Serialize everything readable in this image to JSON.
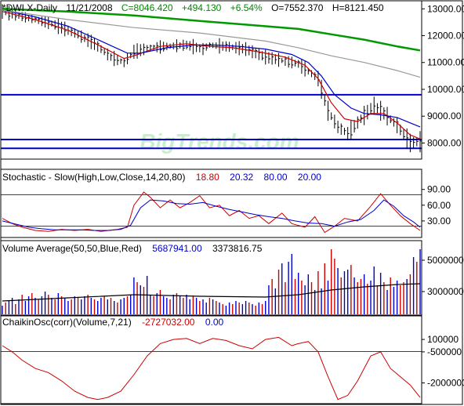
{
  "colors": {
    "price_bar": "#000000",
    "ma_fast": "#cc0000",
    "ma_mid": "#0000cc",
    "ma_long": "#999999",
    "ma_200": "#009900",
    "support_line": "#0000cc",
    "watermark": "#c8f0c8",
    "header_green": "#008800",
    "header_red": "#cc0000",
    "header_blue": "#0000cc",
    "vol_up": "#0000cc",
    "vol_down": "#cc0000"
  },
  "watermark": "BigTrends.com",
  "chart_data": [
    {
      "type": "line",
      "name": "price-panel",
      "header": {
        "symbol": "*DWI X-Daily",
        "date": "11/21/2008",
        "close": "C=8046.420",
        "change": "+494.130",
        "change_pct": "+6.54%",
        "open": "O=7552.370",
        "high": "H=8121.450"
      },
      "ylim": [
        7400,
        13300
      ],
      "y_ticks": [
        8000,
        9000,
        10000,
        11000,
        12000,
        13000
      ],
      "y_tick_labels": [
        "8000.00",
        "9000.00",
        "10000.00",
        "11000.00",
        "12000.00",
        "13000.00"
      ],
      "grid": false,
      "horizontal_lines": [
        9800,
        8130,
        7800
      ],
      "x_index": "trading days, 0-127",
      "price_path": {
        "x": [
          0,
          8,
          15,
          22,
          28,
          33,
          37,
          40,
          45,
          50,
          56,
          61,
          63,
          68,
          74,
          80,
          86,
          90,
          96,
          99,
          102,
          105,
          109,
          113,
          117,
          120,
          124,
          127
        ],
        "y": [
          12900,
          12650,
          12450,
          12100,
          11700,
          11200,
          11000,
          11400,
          11550,
          11600,
          11650,
          11500,
          11650,
          11600,
          11500,
          11200,
          11050,
          10950,
          10400,
          9200,
          8600,
          8350,
          8900,
          9400,
          9000,
          8650,
          8000,
          8050
        ]
      },
      "series": [
        {
          "key": "ma_fast",
          "x": [
            0,
            10,
            20,
            30,
            37,
            40,
            48,
            56,
            63,
            70,
            78,
            86,
            92,
            96,
            100,
            104,
            108,
            112,
            116,
            120,
            124,
            127
          ],
          "y": [
            12900,
            12600,
            12200,
            11600,
            11150,
            11250,
            11600,
            11700,
            11600,
            11550,
            11400,
            11200,
            10900,
            10400,
            9500,
            8900,
            8800,
            9100,
            9100,
            8750,
            8300,
            8150
          ]
        },
        {
          "key": "ma_mid",
          "x": [
            0,
            10,
            20,
            30,
            38,
            42,
            50,
            58,
            65,
            72,
            80,
            88,
            93,
            97,
            101,
            106,
            110,
            115,
            120,
            124,
            127
          ],
          "y": [
            12950,
            12700,
            12350,
            11800,
            11350,
            11350,
            11550,
            11650,
            11650,
            11600,
            11500,
            11300,
            11000,
            10500,
            9800,
            9300,
            9100,
            9050,
            8950,
            8750,
            8600
          ]
        },
        {
          "key": "ma_long",
          "x": [
            0,
            20,
            40,
            60,
            80,
            90,
            100,
            110,
            120,
            127
          ],
          "y": [
            12950,
            12600,
            12300,
            12100,
            11800,
            11550,
            11250,
            11000,
            10700,
            10450
          ]
        },
        {
          "key": "ma_200",
          "x": [
            0,
            20,
            40,
            60,
            75,
            90,
            100,
            110,
            120,
            127
          ],
          "y": [
            13000,
            12900,
            12750,
            12550,
            12400,
            12250,
            12050,
            11850,
            11600,
            11450
          ]
        }
      ]
    },
    {
      "type": "line",
      "name": "stochastic-panel",
      "header": {
        "label": "Stochastic - Slow(High,Low,Close,14,20,80)",
        "k_value": "18.80",
        "d_value": "20.32",
        "upper": "80.00",
        "lower": "20.00"
      },
      "ylim": [
        0,
        100
      ],
      "y_ticks": [
        30,
        60,
        90
      ],
      "y_tick_labels": [
        "30.00",
        "60.00",
        "90.00"
      ],
      "horizontal_lines": [
        80,
        20
      ],
      "series": [
        {
          "key": "ma_fast",
          "x": [
            0,
            3,
            6,
            10,
            14,
            18,
            22,
            26,
            30,
            35,
            38,
            40,
            43,
            45,
            48,
            51,
            54,
            57,
            60,
            63,
            66,
            69,
            72,
            75,
            78,
            81,
            85,
            88,
            92,
            95,
            98,
            101,
            104,
            108,
            112,
            115,
            118,
            121,
            124,
            127
          ],
          "y": [
            35,
            25,
            18,
            12,
            10,
            14,
            12,
            14,
            10,
            14,
            18,
            60,
            85,
            75,
            55,
            70,
            55,
            65,
            78,
            55,
            60,
            40,
            50,
            35,
            40,
            25,
            45,
            25,
            18,
            38,
            8,
            20,
            35,
            30,
            58,
            82,
            60,
            40,
            25,
            12
          ]
        },
        {
          "key": "ma_mid",
          "x": [
            0,
            4,
            8,
            12,
            16,
            20,
            24,
            28,
            32,
            36,
            39,
            42,
            45,
            49,
            53,
            57,
            61,
            65,
            69,
            73,
            77,
            81,
            85,
            89,
            93,
            97,
            101,
            105,
            109,
            113,
            116,
            119,
            122,
            125,
            127
          ],
          "y": [
            30,
            24,
            18,
            15,
            13,
            13,
            13,
            12,
            12,
            14,
            22,
            55,
            70,
            68,
            63,
            62,
            65,
            58,
            52,
            47,
            42,
            38,
            35,
            30,
            26,
            25,
            20,
            28,
            33,
            50,
            70,
            58,
            40,
            28,
            18
          ]
        }
      ]
    },
    {
      "type": "bar",
      "name": "volume-panel",
      "header": {
        "label": "Volume Average(50,50,Blue,Red)",
        "value_1": "5687941.00",
        "value_2": "3373816.75"
      },
      "ylim": [
        1500000,
        6200000
      ],
      "y_ticks": [
        3000000,
        5000000
      ],
      "y_tick_labels": [
        "3000000",
        "5000000"
      ],
      "values": [
        2100000,
        2300000,
        2400000,
        2600000,
        2200000,
        2500000,
        2800000,
        2400000,
        2700000,
        2900000,
        2600000,
        2500000,
        2700000,
        3000000,
        2800000,
        2600000,
        2500000,
        2900000,
        2700000,
        2600000,
        2400000,
        2500000,
        2700000,
        2600000,
        2500000,
        2700000,
        2800000,
        2600000,
        2500000,
        2400000,
        2600000,
        2700000,
        2500000,
        2600000,
        2400000,
        2300000,
        2500000,
        2600000,
        2700000,
        2800000,
        3900000,
        3600000,
        3400000,
        3300000,
        4000000,
        2800000,
        2700000,
        2900000,
        3100000,
        2700000,
        2600000,
        2500000,
        2800000,
        2900000,
        2700000,
        2600000,
        2800000,
        2500000,
        2700000,
        2600000,
        2400000,
        2500000,
        2300000,
        2600000,
        2500000,
        2400000,
        2300000,
        2200000,
        2100000,
        2300000,
        2200000,
        2400000,
        2300000,
        2200000,
        2400000,
        2300000,
        2200000,
        2100000,
        2300000,
        2200000,
        2400000,
        3400000,
        3800000,
        3200000,
        4400000,
        4800000,
        3600000,
        4900000,
        5400000,
        3800000,
        4200000,
        3700000,
        3400000,
        4100000,
        3600000,
        3100000,
        4300000,
        3200000,
        4800000,
        3700000,
        5700000,
        5100000,
        4500000,
        3900000,
        4300000,
        4400000,
        4700000,
        3900000,
        3600000,
        3800000,
        4100000,
        3500000,
        3700000,
        4600000,
        3400000,
        4200000,
        3600000,
        3100000,
        3900000,
        3300000,
        3700000,
        3400000,
        3600000,
        3800000,
        4100000,
        5200000,
        4900000,
        5700000
      ],
      "up": [
        1,
        0,
        1,
        1,
        0,
        1,
        0,
        1,
        1,
        0,
        1,
        0,
        1,
        1,
        0,
        1,
        0,
        1,
        0,
        1,
        1,
        0,
        1,
        0,
        1,
        1,
        0,
        1,
        0,
        1,
        1,
        0,
        1,
        0,
        1,
        0,
        1,
        1,
        0,
        1,
        1,
        0,
        1,
        0,
        1,
        1,
        0,
        1,
        0,
        1,
        1,
        0,
        1,
        0,
        1,
        0,
        1,
        1,
        0,
        1,
        0,
        1,
        1,
        0,
        1,
        0,
        1,
        0,
        1,
        1,
        0,
        1,
        0,
        1,
        1,
        0,
        1,
        0,
        1,
        0,
        1,
        1,
        0,
        1,
        0,
        1,
        0,
        1,
        1,
        0,
        1,
        0,
        1,
        1,
        0,
        1,
        0,
        1,
        0,
        1,
        0,
        0,
        1,
        0,
        1,
        1,
        0,
        1,
        0,
        0,
        1,
        0,
        1,
        1,
        0,
        1,
        0,
        1,
        0,
        1,
        1,
        0,
        0,
        1,
        0,
        1,
        0,
        1
      ],
      "average_line": {
        "x": [
          0,
          20,
          40,
          60,
          80,
          90,
          100,
          110,
          120,
          127
        ],
        "y": [
          2400000,
          2600000,
          2800000,
          2700000,
          2650000,
          2800000,
          3100000,
          3300000,
          3450000,
          3500000
        ]
      }
    },
    {
      "type": "line",
      "name": "chaikin-panel",
      "header": {
        "label": "ChaikinOsc(corr)(Volume,7,21)",
        "value_1": "-2727032.00",
        "value_2": "0.00"
      },
      "ylim": [
        -3000000,
        1200000
      ],
      "y_ticks": [
        100000,
        -500000,
        -2000000
      ],
      "y_tick_labels": [
        "100000",
        "-500000",
        "-2000000"
      ],
      "horizontal_lines": [
        -480000
      ],
      "series": [
        {
          "key": "ma_fast",
          "x": [
            0,
            3,
            6,
            10,
            14,
            18,
            22,
            26,
            29,
            32,
            36,
            40,
            44,
            48,
            52,
            56,
            60,
            64,
            68,
            72,
            76,
            80,
            84,
            88,
            90,
            93,
            96,
            99,
            102,
            105,
            108,
            112,
            115,
            118,
            121,
            124,
            127
          ],
          "y": [
            -200000,
            -500000,
            -900000,
            -1300000,
            -1500000,
            -1900000,
            -2400000,
            -2700000,
            -2800000,
            -2700000,
            -2400000,
            -1600000,
            -700000,
            -100000,
            100000,
            150000,
            -100000,
            150000,
            50000,
            -200000,
            -350000,
            100000,
            200000,
            -200000,
            -100000,
            0,
            -500000,
            -1700000,
            -2800000,
            -2600000,
            -1900000,
            -700000,
            -500000,
            -1300000,
            -1700000,
            -2100000,
            -2700000
          ]
        }
      ]
    }
  ]
}
